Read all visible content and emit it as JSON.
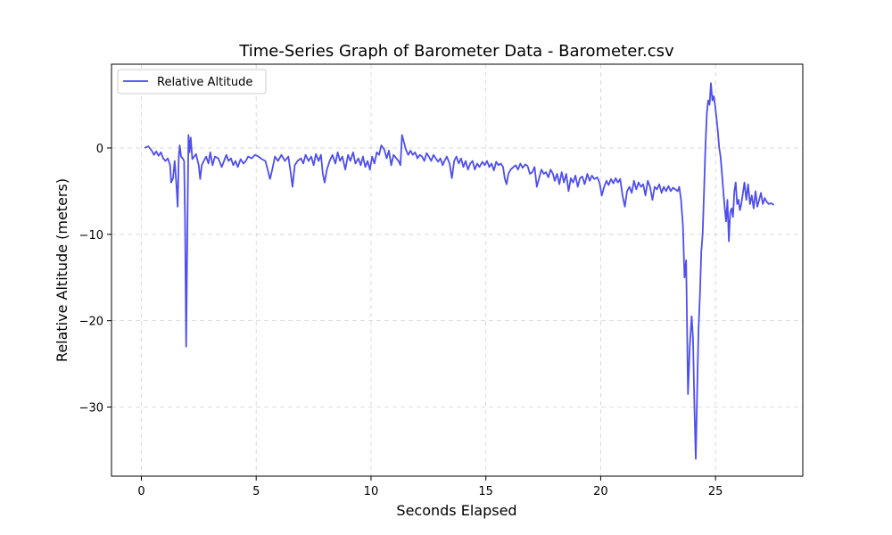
{
  "chart_data": {
    "type": "line",
    "title": "Time-Series Graph of Barometer Data - Barometer.csv",
    "xlabel": "Seconds Elapsed",
    "ylabel": "Relative Altitude (meters)",
    "xlim": [
      -1.3,
      28.8
    ],
    "ylim": [
      -38.0,
      9.7
    ],
    "xticks": [
      0,
      5,
      10,
      15,
      20,
      25
    ],
    "yticks": [
      0,
      -10,
      -20,
      -30
    ],
    "grid": true,
    "legend_position": "top-left",
    "series": [
      {
        "name": "Relative Altitude",
        "color": "#4444ee",
        "points": [
          [
            0.15,
            0.0
          ],
          [
            0.3,
            0.2
          ],
          [
            0.45,
            -0.3
          ],
          [
            0.55,
            -0.8
          ],
          [
            0.65,
            -0.4
          ],
          [
            0.75,
            -0.9
          ],
          [
            0.85,
            -0.5
          ],
          [
            0.95,
            -1.2
          ],
          [
            1.05,
            -1.5
          ],
          [
            1.15,
            -1.2
          ],
          [
            1.25,
            -2.0
          ],
          [
            1.3,
            -4.0
          ],
          [
            1.38,
            -3.5
          ],
          [
            1.45,
            -1.5
          ],
          [
            1.52,
            -4.0
          ],
          [
            1.58,
            -6.8
          ],
          [
            1.63,
            -1.0
          ],
          [
            1.67,
            0.3
          ],
          [
            1.73,
            -1.0
          ],
          [
            1.8,
            -1.2
          ],
          [
            1.86,
            -1.5
          ],
          [
            1.9,
            -8.0
          ],
          [
            1.95,
            -23.0
          ],
          [
            2.0,
            -10.0
          ],
          [
            2.05,
            1.5
          ],
          [
            2.1,
            -0.5
          ],
          [
            2.15,
            1.2
          ],
          [
            2.22,
            -1.3
          ],
          [
            2.3,
            -1.0
          ],
          [
            2.38,
            -0.7
          ],
          [
            2.45,
            -1.5
          ],
          [
            2.5,
            -2.0
          ],
          [
            2.56,
            -3.6
          ],
          [
            2.63,
            -2.0
          ],
          [
            2.72,
            -1.5
          ],
          [
            2.82,
            -1.0
          ],
          [
            2.92,
            -1.8
          ],
          [
            3.0,
            -0.5
          ],
          [
            3.1,
            -2.0
          ],
          [
            3.2,
            -1.0
          ],
          [
            3.35,
            -1.2
          ],
          [
            3.5,
            -2.2
          ],
          [
            3.6,
            -1.5
          ],
          [
            3.7,
            -0.8
          ],
          [
            3.8,
            -1.5
          ],
          [
            3.9,
            -1.2
          ],
          [
            4.0,
            -2.0
          ],
          [
            4.1,
            -1.5
          ],
          [
            4.2,
            -2.2
          ],
          [
            4.32,
            -1.3
          ],
          [
            4.45,
            -1.8
          ],
          [
            4.55,
            -1.5
          ],
          [
            4.65,
            -1.0
          ],
          [
            4.8,
            -1.2
          ],
          [
            4.95,
            -0.8
          ],
          [
            5.1,
            -1.0
          ],
          [
            5.25,
            -1.3
          ],
          [
            5.4,
            -1.5
          ],
          [
            5.5,
            -2.5
          ],
          [
            5.6,
            -3.6
          ],
          [
            5.7,
            -2.5
          ],
          [
            5.82,
            -1.0
          ],
          [
            5.95,
            -1.5
          ],
          [
            6.1,
            -0.8
          ],
          [
            6.25,
            -1.5
          ],
          [
            6.4,
            -1.0
          ],
          [
            6.5,
            -2.8
          ],
          [
            6.58,
            -4.5
          ],
          [
            6.68,
            -2.0
          ],
          [
            6.8,
            -1.5
          ],
          [
            6.95,
            -1.2
          ],
          [
            7.05,
            -1.8
          ],
          [
            7.15,
            -0.8
          ],
          [
            7.28,
            -1.5
          ],
          [
            7.4,
            -1.0
          ],
          [
            7.5,
            -2.0
          ],
          [
            7.6,
            -0.7
          ],
          [
            7.72,
            -1.5
          ],
          [
            7.82,
            -0.8
          ],
          [
            7.9,
            -3.0
          ],
          [
            7.98,
            -4.0
          ],
          [
            8.08,
            -2.5
          ],
          [
            8.2,
            -1.5
          ],
          [
            8.32,
            -0.8
          ],
          [
            8.45,
            -1.8
          ],
          [
            8.55,
            -0.5
          ],
          [
            8.65,
            -1.5
          ],
          [
            8.75,
            -1.0
          ],
          [
            8.88,
            -2.5
          ],
          [
            9.0,
            -0.8
          ],
          [
            9.1,
            -1.5
          ],
          [
            9.22,
            -0.5
          ],
          [
            9.32,
            -1.8
          ],
          [
            9.45,
            -1.2
          ],
          [
            9.55,
            -2.0
          ],
          [
            9.65,
            -1.0
          ],
          [
            9.75,
            -2.2
          ],
          [
            9.85,
            -1.5
          ],
          [
            9.95,
            -2.5
          ],
          [
            10.05,
            -1.0
          ],
          [
            10.15,
            -1.8
          ],
          [
            10.25,
            -0.5
          ],
          [
            10.35,
            -0.8
          ],
          [
            10.45,
            0.3
          ],
          [
            10.58,
            -0.2
          ],
          [
            10.68,
            -1.2
          ],
          [
            10.78,
            -0.3
          ],
          [
            10.88,
            -2.0
          ],
          [
            10.98,
            -0.8
          ],
          [
            11.1,
            -1.2
          ],
          [
            11.2,
            -1.5
          ],
          [
            11.28,
            -2.0
          ],
          [
            11.35,
            1.5
          ],
          [
            11.42,
            0.8
          ],
          [
            11.52,
            -0.2
          ],
          [
            11.62,
            -0.8
          ],
          [
            11.72,
            -0.3
          ],
          [
            11.82,
            -0.8
          ],
          [
            11.92,
            -0.5
          ],
          [
            12.02,
            -1.2
          ],
          [
            12.12,
            -0.8
          ],
          [
            12.22,
            -1.0
          ],
          [
            12.32,
            -1.5
          ],
          [
            12.42,
            -0.6
          ],
          [
            12.52,
            -1.0
          ],
          [
            12.62,
            -1.5
          ],
          [
            12.72,
            -0.8
          ],
          [
            12.82,
            -1.2
          ],
          [
            12.92,
            -1.6
          ],
          [
            13.02,
            -1.2
          ],
          [
            13.12,
            -2.0
          ],
          [
            13.2,
            -1.5
          ],
          [
            13.3,
            -1.0
          ],
          [
            13.42,
            -1.8
          ],
          [
            13.52,
            -3.5
          ],
          [
            13.62,
            -1.5
          ],
          [
            13.72,
            -1.0
          ],
          [
            13.82,
            -1.8
          ],
          [
            13.92,
            -1.2
          ],
          [
            14.02,
            -2.2
          ],
          [
            14.12,
            -1.5
          ],
          [
            14.22,
            -2.5
          ],
          [
            14.32,
            -1.8
          ],
          [
            14.42,
            -1.5
          ],
          [
            14.52,
            -2.5
          ],
          [
            14.62,
            -1.8
          ],
          [
            14.72,
            -2.2
          ],
          [
            14.85,
            -1.6
          ],
          [
            14.95,
            -2.0
          ],
          [
            15.05,
            -1.5
          ],
          [
            15.15,
            -2.2
          ],
          [
            15.25,
            -1.8
          ],
          [
            15.35,
            -2.6
          ],
          [
            15.45,
            -1.6
          ],
          [
            15.55,
            -2.0
          ],
          [
            15.65,
            -1.8
          ],
          [
            15.75,
            -2.2
          ],
          [
            15.82,
            -3.5
          ],
          [
            15.9,
            -4.2
          ],
          [
            15.98,
            -3.0
          ],
          [
            16.08,
            -2.5
          ],
          [
            16.2,
            -2.2
          ],
          [
            16.3,
            -2.0
          ],
          [
            16.4,
            -2.5
          ],
          [
            16.5,
            -1.8
          ],
          [
            16.6,
            -2.3
          ],
          [
            16.72,
            -1.9
          ],
          [
            16.82,
            -2.1
          ],
          [
            16.92,
            -3.0
          ],
          [
            17.02,
            -2.8
          ],
          [
            17.12,
            -2.2
          ],
          [
            17.22,
            -4.5
          ],
          [
            17.32,
            -3.5
          ],
          [
            17.42,
            -2.5
          ],
          [
            17.52,
            -3.0
          ],
          [
            17.62,
            -2.8
          ],
          [
            17.72,
            -3.4
          ],
          [
            17.82,
            -2.5
          ],
          [
            17.92,
            -3.0
          ],
          [
            18.0,
            -3.8
          ],
          [
            18.1,
            -3.0
          ],
          [
            18.2,
            -4.2
          ],
          [
            18.3,
            -2.8
          ],
          [
            18.4,
            -4.0
          ],
          [
            18.5,
            -3.0
          ],
          [
            18.6,
            -5.0
          ],
          [
            18.7,
            -3.5
          ],
          [
            18.8,
            -4.0
          ],
          [
            18.9,
            -3.2
          ],
          [
            19.0,
            -4.5
          ],
          [
            19.1,
            -3.5
          ],
          [
            19.2,
            -3.3
          ],
          [
            19.3,
            -4.2
          ],
          [
            19.42,
            -3.0
          ],
          [
            19.52,
            -3.8
          ],
          [
            19.62,
            -3.2
          ],
          [
            19.72,
            -3.6
          ],
          [
            19.85,
            -3.4
          ],
          [
            19.95,
            -4.0
          ],
          [
            20.05,
            -5.5
          ],
          [
            20.15,
            -4.5
          ],
          [
            20.25,
            -3.8
          ],
          [
            20.35,
            -4.3
          ],
          [
            20.45,
            -3.6
          ],
          [
            20.55,
            -4.1
          ],
          [
            20.65,
            -3.5
          ],
          [
            20.75,
            -4.0
          ],
          [
            20.85,
            -3.6
          ],
          [
            20.95,
            -5.5
          ],
          [
            21.05,
            -6.8
          ],
          [
            21.15,
            -5.0
          ],
          [
            21.25,
            -4.5
          ],
          [
            21.35,
            -5.2
          ],
          [
            21.45,
            -3.8
          ],
          [
            21.55,
            -4.8
          ],
          [
            21.65,
            -4.0
          ],
          [
            21.75,
            -4.5
          ],
          [
            21.85,
            -4.2
          ],
          [
            21.95,
            -5.5
          ],
          [
            22.05,
            -3.8
          ],
          [
            22.15,
            -4.5
          ],
          [
            22.25,
            -6.0
          ],
          [
            22.35,
            -4.5
          ],
          [
            22.45,
            -4.8
          ],
          [
            22.55,
            -4.2
          ],
          [
            22.65,
            -5.2
          ],
          [
            22.75,
            -4.5
          ],
          [
            22.85,
            -5.0
          ],
          [
            22.95,
            -4.4
          ],
          [
            23.05,
            -5.0
          ],
          [
            23.15,
            -4.6
          ],
          [
            23.25,
            -4.8
          ],
          [
            23.35,
            -5.0
          ],
          [
            23.42,
            -4.5
          ],
          [
            23.5,
            -6.0
          ],
          [
            23.58,
            -9.0
          ],
          [
            23.65,
            -15.0
          ],
          [
            23.72,
            -13.0
          ],
          [
            23.8,
            -28.5
          ],
          [
            23.88,
            -23.0
          ],
          [
            23.96,
            -19.5
          ],
          [
            24.02,
            -22.0
          ],
          [
            24.08,
            -30.0
          ],
          [
            24.14,
            -36.0
          ],
          [
            24.2,
            -28.0
          ],
          [
            24.26,
            -21.0
          ],
          [
            24.32,
            -17.0
          ],
          [
            24.38,
            -12.0
          ],
          [
            24.44,
            -10.0
          ],
          [
            24.5,
            -5.0
          ],
          [
            24.56,
            0.0
          ],
          [
            24.62,
            4.0
          ],
          [
            24.68,
            5.5
          ],
          [
            24.74,
            5.0
          ],
          [
            24.8,
            7.5
          ],
          [
            24.86,
            5.5
          ],
          [
            24.92,
            6.0
          ],
          [
            24.98,
            5.0
          ],
          [
            25.04,
            3.5
          ],
          [
            25.1,
            2.0
          ],
          [
            25.16,
            0.0
          ],
          [
            25.22,
            -1.0
          ],
          [
            25.28,
            -3.0
          ],
          [
            25.34,
            -5.0
          ],
          [
            25.4,
            -7.0
          ],
          [
            25.46,
            -8.5
          ],
          [
            25.52,
            -6.0
          ],
          [
            25.58,
            -10.8
          ],
          [
            25.64,
            -7.5
          ],
          [
            25.7,
            -7.0
          ],
          [
            25.76,
            -8.0
          ],
          [
            25.82,
            -5.0
          ],
          [
            25.88,
            -4.0
          ],
          [
            25.94,
            -6.5
          ],
          [
            26.0,
            -6.0
          ],
          [
            26.06,
            -7.2
          ],
          [
            26.12,
            -6.5
          ],
          [
            26.18,
            -5.5
          ],
          [
            26.26,
            -4.0
          ],
          [
            26.34,
            -6.0
          ],
          [
            26.42,
            -4.2
          ],
          [
            26.5,
            -6.5
          ],
          [
            26.58,
            -5.5
          ],
          [
            26.66,
            -7.0
          ],
          [
            26.74,
            -5.0
          ],
          [
            26.82,
            -6.8
          ],
          [
            26.9,
            -6.0
          ],
          [
            26.98,
            -5.2
          ],
          [
            27.06,
            -6.5
          ],
          [
            27.14,
            -5.8
          ],
          [
            27.22,
            -6.2
          ],
          [
            27.32,
            -6.5
          ],
          [
            27.42,
            -6.4
          ],
          [
            27.55,
            -6.6
          ]
        ]
      }
    ]
  }
}
